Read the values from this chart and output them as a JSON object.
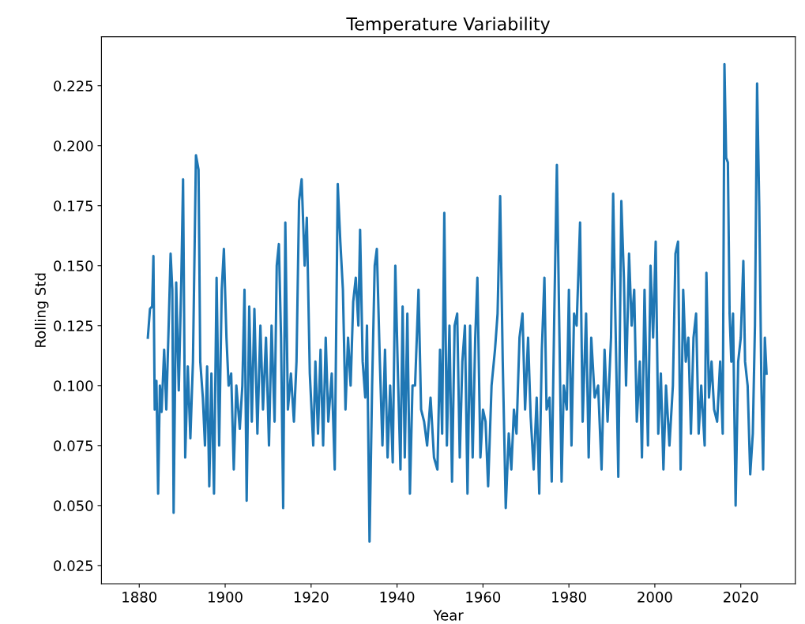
{
  "chart_data": {
    "type": "line",
    "title": "Temperature Variability",
    "xlabel": "Year",
    "ylabel": "Rolling Std",
    "xlim": [
      1871.2,
      2032.7
    ],
    "ylim": [
      0.0174,
      0.2454
    ],
    "xticks": [
      1880,
      1900,
      1920,
      1940,
      1960,
      1980,
      2000,
      2020
    ],
    "yticks": [
      {
        "value": 0.025,
        "label": "0.025"
      },
      {
        "value": 0.05,
        "label": "0.050"
      },
      {
        "value": 0.075,
        "label": "0.075"
      },
      {
        "value": 0.1,
        "label": "0.100"
      },
      {
        "value": 0.125,
        "label": "0.125"
      },
      {
        "value": 0.15,
        "label": "0.150"
      },
      {
        "value": 0.175,
        "label": "0.175"
      },
      {
        "value": 0.2,
        "label": "0.200"
      },
      {
        "value": 0.225,
        "label": "0.225"
      }
    ],
    "grid": false,
    "series": [
      {
        "color": "#1f77b4",
        "x": [
          1882.0,
          1882.5,
          1883.0,
          1883.3,
          1883.6,
          1884.0,
          1884.4,
          1884.8,
          1885.2,
          1885.8,
          1886.3,
          1886.8,
          1887.3,
          1887.7,
          1888.0,
          1888.6,
          1889.2,
          1889.8,
          1890.2,
          1890.7,
          1891.3,
          1891.9,
          1892.5,
          1893.2,
          1893.8,
          1894.2,
          1894.8,
          1895.3,
          1895.8,
          1896.3,
          1896.8,
          1897.4,
          1898.0,
          1898.6,
          1899.2,
          1899.7,
          1900.3,
          1900.8,
          1901.4,
          1902.0,
          1902.6,
          1903.4,
          1904.0,
          1904.5,
          1905.0,
          1905.6,
          1906.2,
          1906.8,
          1907.5,
          1908.2,
          1908.8,
          1909.5,
          1910.2,
          1910.8,
          1911.5,
          1912.0,
          1912.5,
          1913.0,
          1913.5,
          1914.0,
          1914.6,
          1915.3,
          1916.0,
          1916.6,
          1917.2,
          1917.8,
          1918.5,
          1919.0,
          1919.7,
          1920.5,
          1921.0,
          1921.6,
          1922.2,
          1922.8,
          1923.4,
          1924.0,
          1924.8,
          1925.5,
          1926.2,
          1926.8,
          1927.4,
          1928.0,
          1928.6,
          1929.2,
          1929.8,
          1930.4,
          1931.0,
          1931.4,
          1932.0,
          1932.6,
          1933.0,
          1933.6,
          1934.2,
          1934.8,
          1935.3,
          1936.0,
          1936.6,
          1937.2,
          1937.8,
          1938.4,
          1939.0,
          1939.6,
          1940.2,
          1940.8,
          1941.3,
          1941.8,
          1942.4,
          1943.0,
          1943.6,
          1944.2,
          1945.0,
          1945.6,
          1946.3,
          1947.0,
          1947.8,
          1948.6,
          1949.4,
          1950.0,
          1950.5,
          1951.0,
          1951.6,
          1952.2,
          1952.8,
          1953.4,
          1954.0,
          1954.6,
          1955.2,
          1955.8,
          1956.4,
          1957.0,
          1957.6,
          1958.2,
          1958.7,
          1959.4,
          1960.0,
          1960.6,
          1961.2,
          1962.0,
          1962.8,
          1963.4,
          1964.0,
          1964.6,
          1965.3,
          1966.0,
          1966.6,
          1967.2,
          1967.8,
          1968.5,
          1969.2,
          1969.8,
          1970.5,
          1971.1,
          1971.8,
          1972.5,
          1973.1,
          1973.7,
          1974.3,
          1974.8,
          1975.5,
          1976.0,
          1976.6,
          1977.2,
          1977.8,
          1978.3,
          1978.8,
          1979.5,
          1980.0,
          1980.6,
          1981.2,
          1981.8,
          1982.6,
          1983.2,
          1984.0,
          1984.6,
          1985.2,
          1986.0,
          1986.8,
          1987.6,
          1988.3,
          1989.0,
          1989.8,
          1990.3,
          1990.8,
          1991.5,
          1992.2,
          1992.8,
          1993.3,
          1994.0,
          1994.6,
          1995.2,
          1995.8,
          1996.5,
          1997.0,
          1997.6,
          1998.4,
          1999.0,
          1999.6,
          2000.2,
          2000.8,
          2001.4,
          2002.0,
          2002.6,
          2003.4,
          2004.2,
          2004.8,
          2005.4,
          2006.0,
          2006.6,
          2007.2,
          2007.8,
          2008.4,
          2009.0,
          2009.6,
          2010.2,
          2010.8,
          2011.6,
          2012.0,
          2012.6,
          2013.2,
          2013.8,
          2014.5,
          2015.2,
          2015.8,
          2016.2,
          2016.6,
          2017.0,
          2017.4,
          2017.8,
          2018.2,
          2018.8,
          2019.4,
          2020.0,
          2020.6,
          2021.0,
          2021.6,
          2022.2,
          2022.8,
          2023.3,
          2023.8,
          2024.3,
          2024.8,
          2025.2,
          2025.6,
          2026.0
        ],
        "values": [
          0.12,
          0.132,
          0.133,
          0.154,
          0.09,
          0.102,
          0.055,
          0.1,
          0.089,
          0.115,
          0.09,
          0.122,
          0.155,
          0.14,
          0.047,
          0.143,
          0.098,
          0.145,
          0.186,
          0.07,
          0.108,
          0.078,
          0.11,
          0.196,
          0.19,
          0.11,
          0.095,
          0.075,
          0.108,
          0.058,
          0.105,
          0.055,
          0.145,
          0.075,
          0.14,
          0.157,
          0.12,
          0.1,
          0.105,
          0.065,
          0.1,
          0.082,
          0.1,
          0.14,
          0.052,
          0.133,
          0.085,
          0.132,
          0.08,
          0.125,
          0.09,
          0.12,
          0.075,
          0.125,
          0.085,
          0.15,
          0.159,
          0.12,
          0.049,
          0.168,
          0.09,
          0.105,
          0.085,
          0.11,
          0.177,
          0.186,
          0.15,
          0.17,
          0.105,
          0.075,
          0.11,
          0.08,
          0.115,
          0.075,
          0.12,
          0.085,
          0.105,
          0.065,
          0.184,
          0.16,
          0.14,
          0.09,
          0.12,
          0.1,
          0.135,
          0.145,
          0.125,
          0.165,
          0.11,
          0.095,
          0.125,
          0.035,
          0.1,
          0.15,
          0.157,
          0.11,
          0.075,
          0.115,
          0.07,
          0.1,
          0.068,
          0.15,
          0.105,
          0.065,
          0.133,
          0.07,
          0.13,
          0.055,
          0.1,
          0.1,
          0.14,
          0.09,
          0.085,
          0.075,
          0.095,
          0.07,
          0.065,
          0.115,
          0.08,
          0.172,
          0.075,
          0.125,
          0.06,
          0.125,
          0.13,
          0.07,
          0.11,
          0.125,
          0.055,
          0.125,
          0.07,
          0.12,
          0.145,
          0.07,
          0.09,
          0.085,
          0.058,
          0.1,
          0.115,
          0.13,
          0.179,
          0.11,
          0.049,
          0.08,
          0.065,
          0.09,
          0.08,
          0.12,
          0.13,
          0.09,
          0.12,
          0.087,
          0.065,
          0.095,
          0.055,
          0.115,
          0.145,
          0.09,
          0.095,
          0.06,
          0.13,
          0.192,
          0.12,
          0.06,
          0.1,
          0.09,
          0.14,
          0.075,
          0.13,
          0.125,
          0.168,
          0.085,
          0.13,
          0.07,
          0.12,
          0.095,
          0.1,
          0.065,
          0.115,
          0.085,
          0.12,
          0.18,
          0.13,
          0.062,
          0.177,
          0.145,
          0.1,
          0.155,
          0.125,
          0.14,
          0.085,
          0.11,
          0.07,
          0.14,
          0.075,
          0.15,
          0.12,
          0.16,
          0.08,
          0.105,
          0.065,
          0.1,
          0.075,
          0.1,
          0.155,
          0.16,
          0.065,
          0.14,
          0.11,
          0.12,
          0.08,
          0.12,
          0.13,
          0.08,
          0.1,
          0.075,
          0.147,
          0.095,
          0.11,
          0.09,
          0.085,
          0.11,
          0.08,
          0.234,
          0.195,
          0.193,
          0.13,
          0.11,
          0.13,
          0.05,
          0.11,
          0.12,
          0.152,
          0.11,
          0.1,
          0.063,
          0.08,
          0.125,
          0.226,
          0.175,
          0.1,
          0.065,
          0.12,
          0.105
        ]
      }
    ]
  }
}
